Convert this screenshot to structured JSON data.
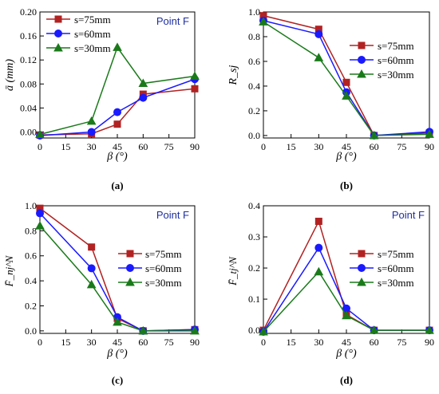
{
  "colors": {
    "s75": "#b22222",
    "s60": "#1a1aff",
    "s30": "#1a7a1a",
    "point_label": "#1f2fa0"
  },
  "chart_data": [
    {
      "type": "line",
      "panel_label": "(a)",
      "ylabel": "ā (mm)",
      "xlabel": "β (°)",
      "annotation": "Point F",
      "legend_placement": "top-left",
      "x": [
        0,
        30,
        45,
        60,
        90
      ],
      "xticks": [
        "0",
        "15",
        "30",
        "45",
        "60",
        "75",
        "90"
      ],
      "yticks": [
        "0.00",
        "0.04",
        "0.08",
        "0.12",
        "0.16",
        "0.20"
      ],
      "xlim": [
        0,
        90
      ],
      "ylim": [
        -0.01,
        0.2
      ],
      "series": [
        {
          "name": "s=75mm",
          "values": [
            -0.005,
            -0.003,
            0.013,
            0.063,
            0.072
          ]
        },
        {
          "name": "s=60mm",
          "values": [
            -0.006,
            0.0,
            0.033,
            0.057,
            0.088
          ]
        },
        {
          "name": "s=30mm",
          "values": [
            -0.004,
            0.018,
            0.141,
            0.081,
            0.093
          ]
        }
      ]
    },
    {
      "type": "line",
      "panel_label": "(b)",
      "ylabel": "R_sj",
      "xlabel": "β (°)",
      "legend_placement": "right",
      "x": [
        0,
        30,
        45,
        60,
        90
      ],
      "xticks": [
        "0",
        "15",
        "30",
        "45",
        "60",
        "75",
        "90"
      ],
      "yticks": [
        "0.0",
        "0.2",
        "0.4",
        "0.6",
        "0.8",
        "1.0"
      ],
      "xlim": [
        0,
        90
      ],
      "ylim": [
        -0.02,
        1.0
      ],
      "series": [
        {
          "name": "s=75mm",
          "values": [
            0.97,
            0.86,
            0.43,
            0.0,
            0.02
          ]
        },
        {
          "name": "s=60mm",
          "values": [
            0.93,
            0.82,
            0.35,
            0.0,
            0.03
          ]
        },
        {
          "name": "s=30mm",
          "values": [
            0.92,
            0.63,
            0.32,
            0.0,
            0.01
          ]
        }
      ]
    },
    {
      "type": "line",
      "panel_label": "(c)",
      "ylabel": "F̄_nj^N",
      "xlabel": "β (°)",
      "annotation": "Point F",
      "legend_placement": "right",
      "x": [
        0,
        30,
        45,
        60,
        90
      ],
      "xticks": [
        "0",
        "15",
        "30",
        "45",
        "60",
        "75",
        "90"
      ],
      "yticks": [
        "0.0",
        "0.2",
        "0.4",
        "0.6",
        "0.8",
        "1.0"
      ],
      "xlim": [
        0,
        90
      ],
      "ylim": [
        -0.02,
        1.0
      ],
      "series": [
        {
          "name": "s=75mm",
          "values": [
            0.98,
            0.67,
            0.1,
            0.0,
            0.01
          ]
        },
        {
          "name": "s=60mm",
          "values": [
            0.94,
            0.5,
            0.11,
            0.0,
            0.01
          ]
        },
        {
          "name": "s=30mm",
          "values": [
            0.84,
            0.37,
            0.07,
            0.0,
            0.0
          ]
        }
      ]
    },
    {
      "type": "line",
      "panel_label": "(d)",
      "ylabel": "F̄_tj^N",
      "xlabel": "β (°)",
      "annotation": "Point F",
      "legend_placement": "right",
      "x": [
        0,
        30,
        45,
        60,
        90
      ],
      "xticks": [
        "0",
        "15",
        "30",
        "45",
        "60",
        "75",
        "90"
      ],
      "yticks": [
        "0.0",
        "0.1",
        "0.2",
        "0.3",
        "0.4"
      ],
      "xlim": [
        0,
        90
      ],
      "ylim": [
        -0.01,
        0.4
      ],
      "series": [
        {
          "name": "s=75mm",
          "values": [
            0.0,
            0.35,
            0.05,
            0.0,
            0.0
          ]
        },
        {
          "name": "s=60mm",
          "values": [
            -0.005,
            0.265,
            0.07,
            0.0,
            0.0
          ]
        },
        {
          "name": "s=30mm",
          "values": [
            -0.005,
            0.188,
            0.047,
            0.0,
            0.0
          ]
        }
      ]
    }
  ]
}
